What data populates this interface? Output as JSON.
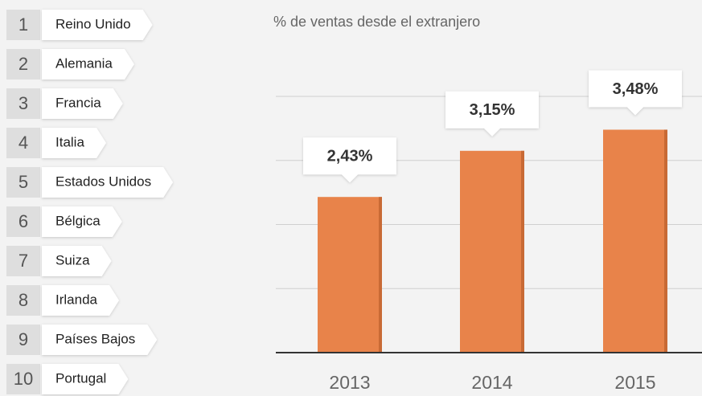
{
  "ranking": {
    "items": [
      {
        "rank": 1,
        "name": "Reino Unido"
      },
      {
        "rank": 2,
        "name": "Alemania"
      },
      {
        "rank": 3,
        "name": "Francia"
      },
      {
        "rank": 4,
        "name": "Italia"
      },
      {
        "rank": 5,
        "name": "Estados Unidos"
      },
      {
        "rank": 6,
        "name": "Bélgica"
      },
      {
        "rank": 7,
        "name": "Suiza"
      },
      {
        "rank": 8,
        "name": "Irlanda"
      },
      {
        "rank": 9,
        "name": "Países Bajos"
      },
      {
        "rank": 10,
        "name": "Portugal"
      }
    ]
  },
  "chart_data": {
    "type": "bar",
    "title": "% de ventas desde el extranjero",
    "categories": [
      "2013",
      "2014",
      "2015"
    ],
    "values": [
      2.43,
      3.15,
      3.48
    ],
    "value_labels": [
      "2,43%",
      "3,15%",
      "3,48%"
    ],
    "color": "#e8834a",
    "ylim": [
      0,
      4
    ],
    "grid": true
  }
}
